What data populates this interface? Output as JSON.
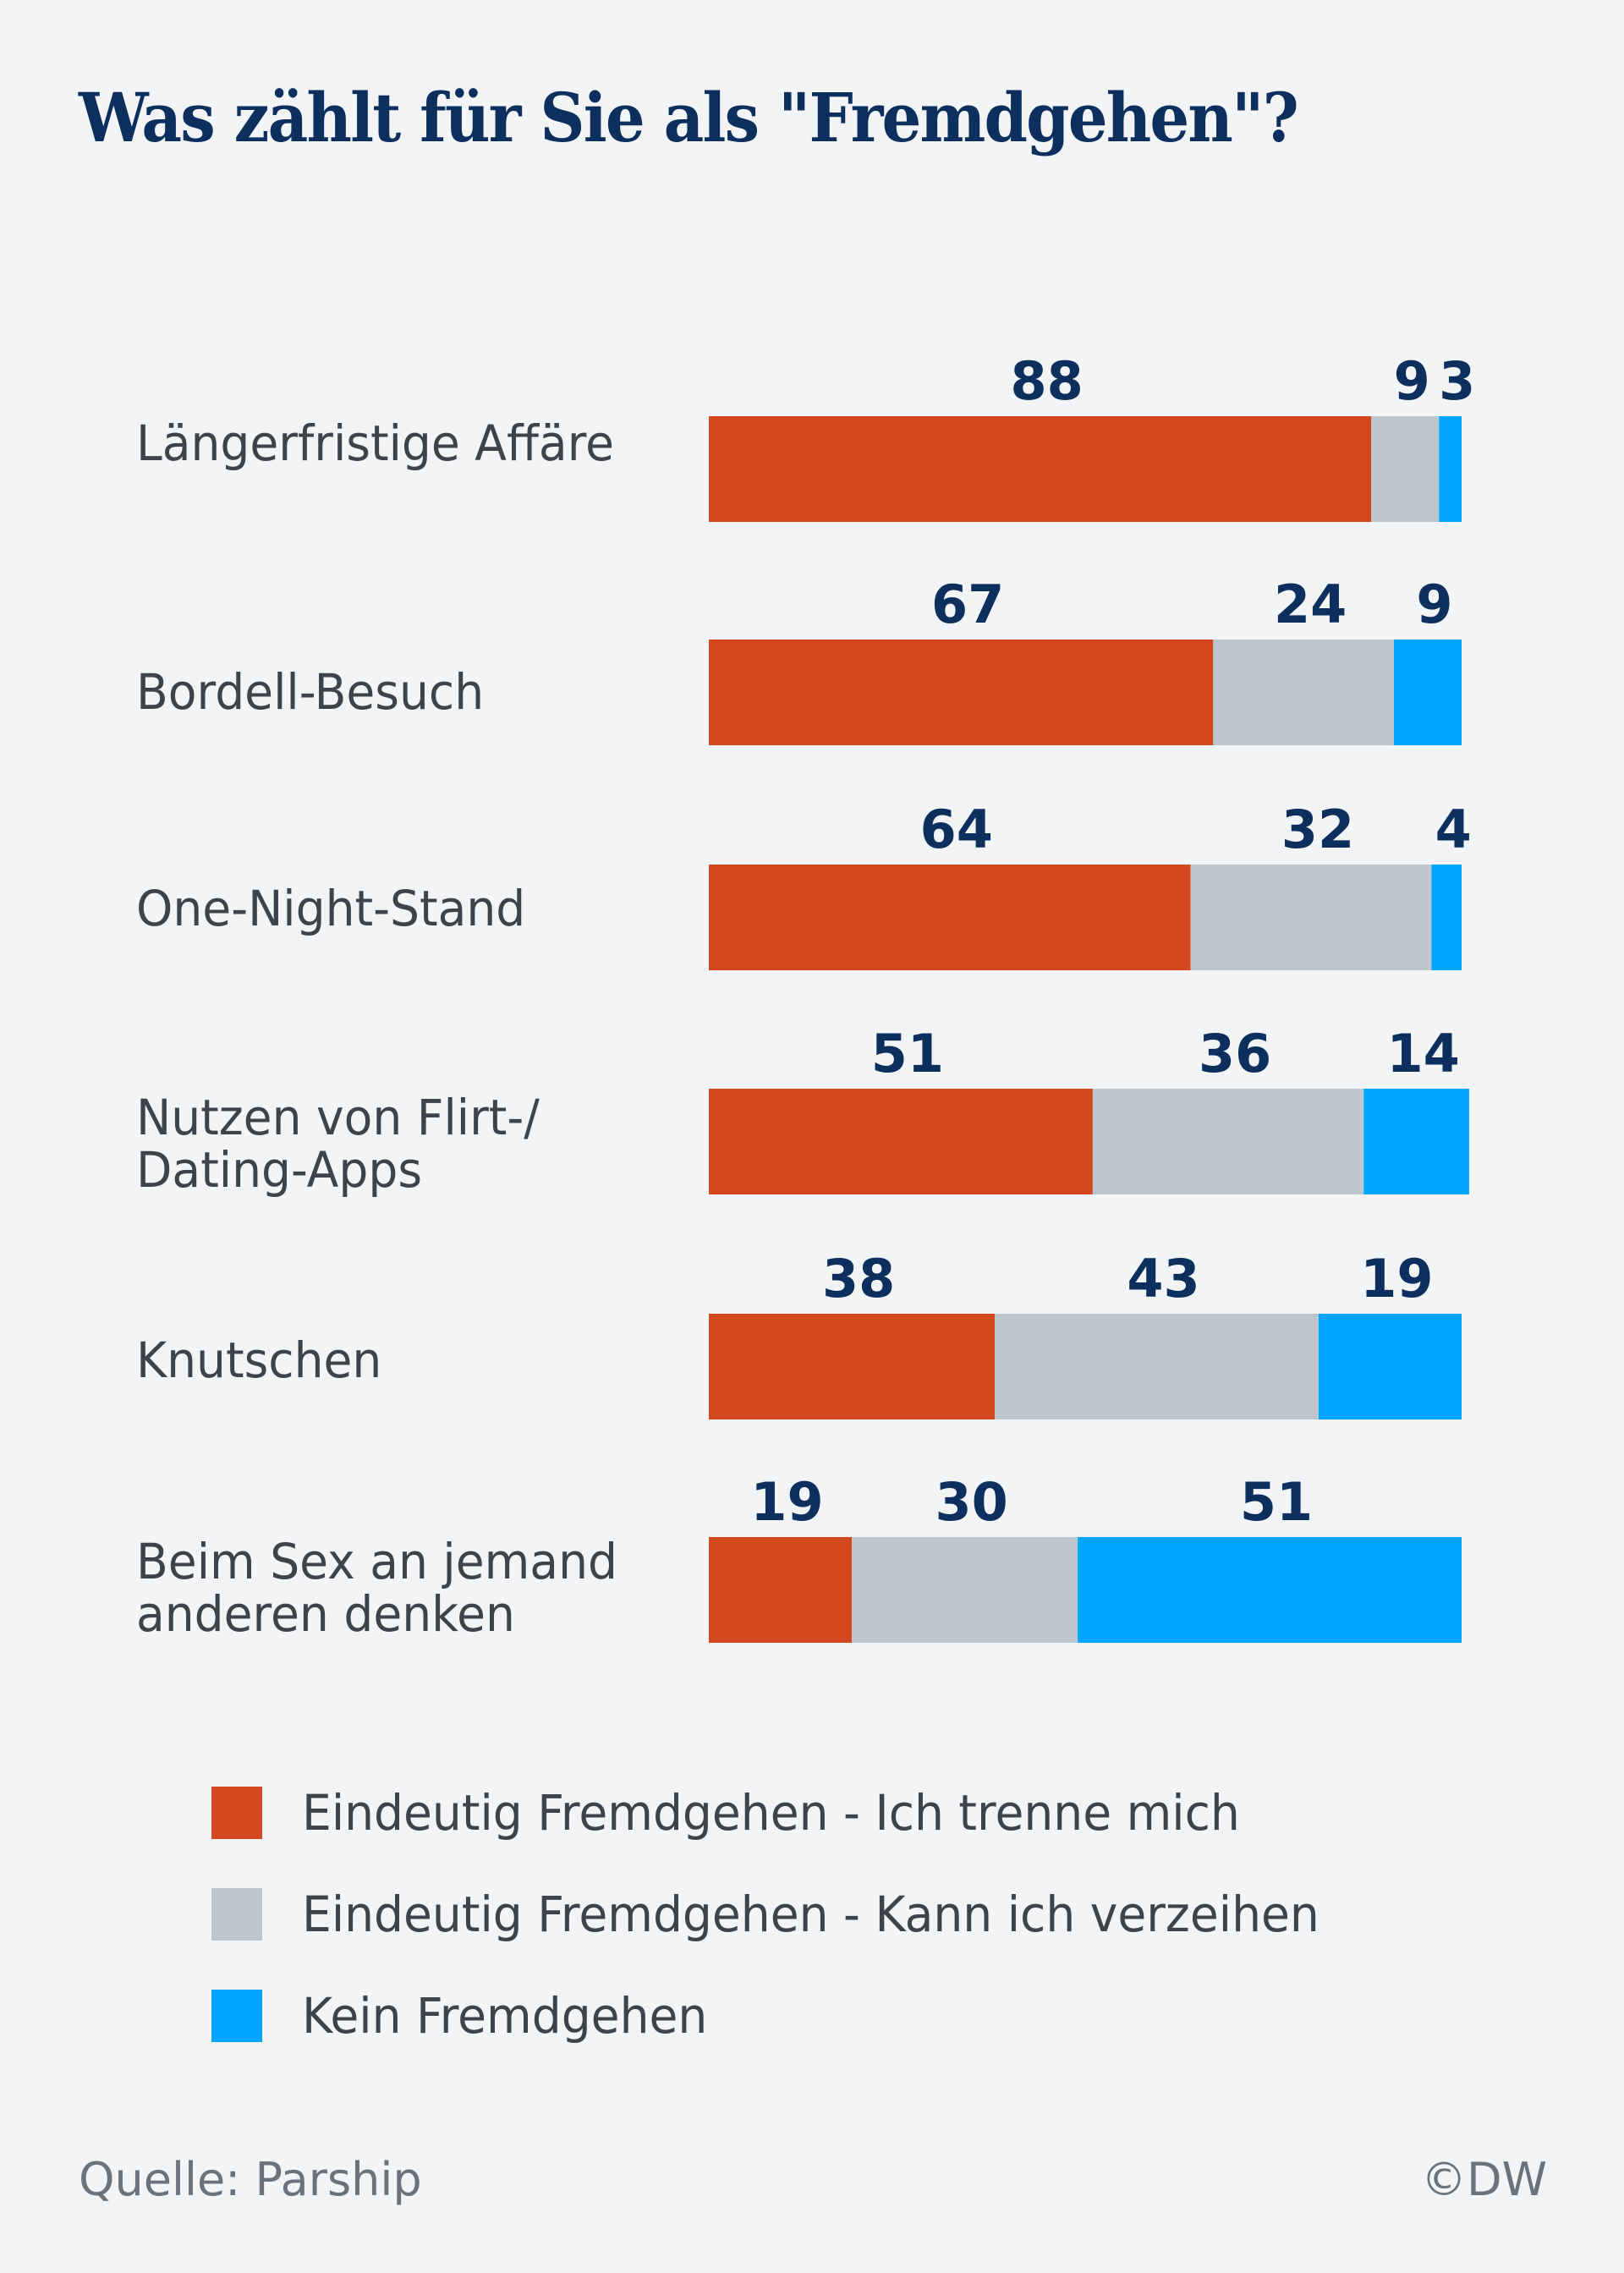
{
  "chart_data": {
    "type": "bar",
    "orientation": "horizontal",
    "stacked": true,
    "title": "Was zählt für Sie als \"Fremdgehen\"?",
    "categories": [
      "Längerfristige Affäre",
      "Bordell-Besuch",
      "One-Night-Stand",
      "Nutzen von Flirt-/ Dating-Apps",
      "Knutschen",
      "Beim Sex an jemand anderen denken"
    ],
    "series": [
      {
        "name": "Eindeutig Fremdgehen - Ich trenne mich",
        "color": "#d44820",
        "values": [
          88,
          67,
          64,
          51,
          38,
          19
        ]
      },
      {
        "name": "Eindeutig Fremdgehen - Kann ich verzeihen",
        "color": "#bec6cd",
        "values": [
          9,
          24,
          32,
          36,
          43,
          30
        ]
      },
      {
        "name": "Kein Fremdgehen",
        "color": "#00a5ff",
        "values": [
          3,
          9,
          4,
          14,
          19,
          51
        ]
      }
    ],
    "unit": "%",
    "grid": false,
    "legend_position": "bottom"
  },
  "footer": {
    "source": "Quelle: Parship",
    "credit": "©DW"
  },
  "colors": {
    "title": "#0c2f5e",
    "background": "#f2f4f6"
  }
}
